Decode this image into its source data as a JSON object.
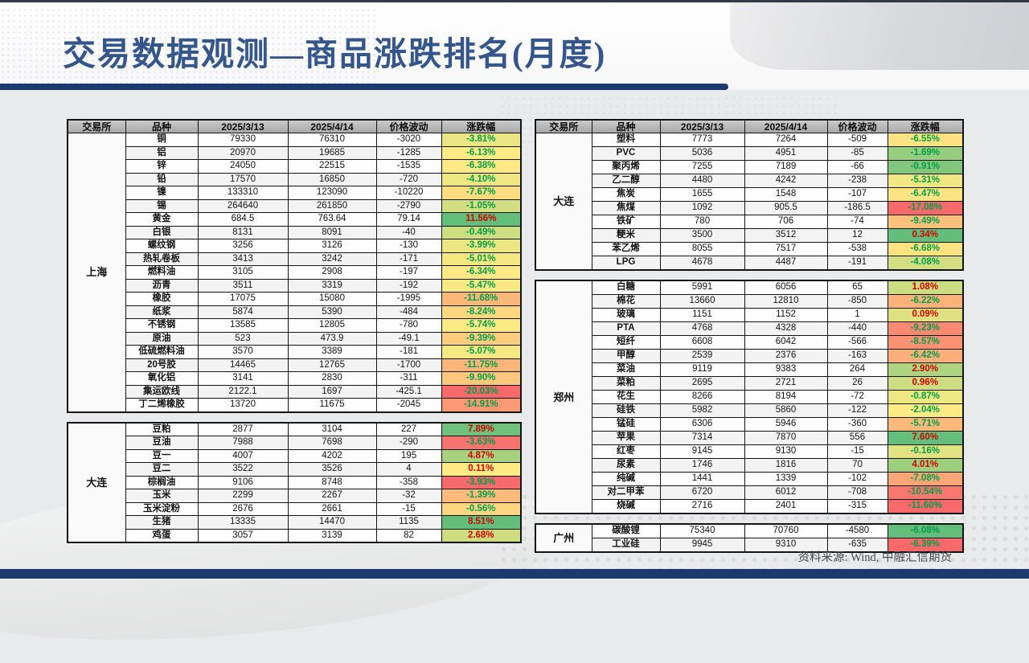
{
  "title": "交易数据观测—商品涨跌排名(月度)",
  "source_note": "资料来源: Wind, 中融汇信期货",
  "columns": [
    "交易所",
    "品种",
    "2025/3/13",
    "2025/4/14",
    "价格波动",
    "涨跌幅"
  ],
  "colors": {
    "accent": "#1C3A6E",
    "title_text": "#35568B",
    "positive_text": "#D40000",
    "negative_text": "#009E4A",
    "scale_max_green": "#63BE7B",
    "scale_mid_yellow": "#FFEB84",
    "scale_min_red": "#F8696B"
  },
  "left_table": {
    "sections": [
      {
        "exchange": "上海",
        "rows": [
          {
            "name": "铜",
            "d1": "79330",
            "d2": "76310",
            "chg": "-3020",
            "pct": "-3.81%",
            "bg": "#EBE583"
          },
          {
            "name": "铝",
            "d1": "20970",
            "d2": "19685",
            "chg": "-1285",
            "pct": "-6.13%",
            "bg": "#FFEB84"
          },
          {
            "name": "锌",
            "d1": "24050",
            "d2": "22515",
            "chg": "-1535",
            "pct": "-6.38%",
            "bg": "#FFE984"
          },
          {
            "name": "铅",
            "d1": "17570",
            "d2": "16850",
            "chg": "-720",
            "pct": "-4.10%",
            "bg": "#EDE683"
          },
          {
            "name": "镍",
            "d1": "133310",
            "d2": "123090",
            "chg": "-10220",
            "pct": "-7.67%",
            "bg": "#FEDD81"
          },
          {
            "name": "锡",
            "d1": "264640",
            "d2": "261850",
            "chg": "-2790",
            "pct": "-1.05%",
            "bg": "#D2DE81"
          },
          {
            "name": "黄金",
            "d1": "684.5",
            "d2": "763.64",
            "chg": "79.14",
            "pct": "11.56%",
            "bg": "#63BE7B"
          },
          {
            "name": "白银",
            "d1": "8131",
            "d2": "8091",
            "chg": "-40",
            "pct": "-0.49%",
            "bg": "#CDDD81"
          },
          {
            "name": "螺纹钢",
            "d1": "3256",
            "d2": "3126",
            "chg": "-130",
            "pct": "-3.99%",
            "bg": "#ECE683"
          },
          {
            "name": "热轧卷板",
            "d1": "3413",
            "d2": "3242",
            "chg": "-171",
            "pct": "-5.01%",
            "bg": "#F5E883"
          },
          {
            "name": "燃料油",
            "d1": "3105",
            "d2": "2908",
            "chg": "-197",
            "pct": "-6.34%",
            "bg": "#FFE984"
          },
          {
            "name": "沥青",
            "d1": "3511",
            "d2": "3319",
            "chg": "-192",
            "pct": "-5.47%",
            "bg": "#F9E984"
          },
          {
            "name": "橡胶",
            "d1": "17075",
            "d2": "15080",
            "chg": "-1995",
            "pct": "-11.68%",
            "bg": "#FCB77A"
          },
          {
            "name": "纸浆",
            "d1": "5874",
            "d2": "5390",
            "chg": "-484",
            "pct": "-8.24%",
            "bg": "#FED780"
          },
          {
            "name": "不锈钢",
            "d1": "13585",
            "d2": "12805",
            "chg": "-780",
            "pct": "-5.74%",
            "bg": "#FCEA84"
          },
          {
            "name": "原油",
            "d1": "523",
            "d2": "473.9",
            "chg": "-49.1",
            "pct": "-9.39%",
            "bg": "#FDCC7E"
          },
          {
            "name": "低硫燃料油",
            "d1": "3570",
            "d2": "3389",
            "chg": "-181",
            "pct": "-5.07%",
            "bg": "#F6E883"
          },
          {
            "name": "20号胶",
            "d1": "14465",
            "d2": "12765",
            "chg": "-1700",
            "pct": "-11.75%",
            "bg": "#FCB67A"
          },
          {
            "name": "氧化铝",
            "d1": "3141",
            "d2": "2830",
            "chg": "-311",
            "pct": "-9.90%",
            "bg": "#FDC87D"
          },
          {
            "name": "集运欧线",
            "d1": "2122.1",
            "d2": "1697",
            "chg": "-425.1",
            "pct": "-20.03%",
            "bg": "#F8696B"
          },
          {
            "name": "丁二烯橡胶",
            "d1": "13720",
            "d2": "11675",
            "chg": "-2045",
            "pct": "-14.91%",
            "bg": "#FB9974"
          }
        ]
      },
      {
        "exchange": "大连",
        "rows": [
          {
            "name": "豆粕",
            "d1": "2877",
            "d2": "3104",
            "chg": "227",
            "pct": "7.89%",
            "bg": "#6FC17C"
          },
          {
            "name": "豆油",
            "d1": "7988",
            "d2": "7698",
            "chg": "-290",
            "pct": "-3.63%",
            "bg": "#F8736D"
          },
          {
            "name": "豆一",
            "d1": "4007",
            "d2": "4202",
            "chg": "195",
            "pct": "4.87%",
            "bg": "#A7D17F"
          },
          {
            "name": "豆二",
            "d1": "3522",
            "d2": "3526",
            "chg": "4",
            "pct": "0.11%",
            "bg": "#FFEB84"
          },
          {
            "name": "棕榈油",
            "d1": "9106",
            "d2": "8748",
            "chg": "-358",
            "pct": "-3.93%",
            "bg": "#F8696B"
          },
          {
            "name": "玉米",
            "d1": "2299",
            "d2": "2267",
            "chg": "-32",
            "pct": "-1.39%",
            "bg": "#FCBB7B"
          },
          {
            "name": "玉米淀粉",
            "d1": "2676",
            "d2": "2661",
            "chg": "-15",
            "pct": "-0.56%",
            "bg": "#FED580"
          },
          {
            "name": "生猪",
            "d1": "13335",
            "d2": "14470",
            "chg": "1135",
            "pct": "8.51%",
            "bg": "#63BE7B"
          },
          {
            "name": "鸡蛋",
            "d1": "3057",
            "d2": "3139",
            "chg": "82",
            "pct": "2.68%",
            "bg": "#CFDD81"
          }
        ]
      }
    ]
  },
  "right_table": {
    "sections": [
      {
        "exchange": "大连",
        "rows": [
          {
            "name": "塑料",
            "d1": "7773",
            "d2": "7264",
            "chg": "-509",
            "pct": "-6.55%",
            "bg": "#FFE383"
          },
          {
            "name": "PVC",
            "d1": "5036",
            "d2": "4951",
            "chg": "-85",
            "pct": "-1.69%",
            "bg": "#96CD7E"
          },
          {
            "name": "聚丙烯",
            "d1": "7255",
            "d2": "7189",
            "chg": "-66",
            "pct": "-0.91%",
            "bg": "#82C77D"
          },
          {
            "name": "乙二醇",
            "d1": "4480",
            "d2": "4242",
            "chg": "-238",
            "pct": "-5.31%",
            "bg": "#F0E783"
          },
          {
            "name": "焦炭",
            "d1": "1655",
            "d2": "1548",
            "chg": "-107",
            "pct": "-6.47%",
            "bg": "#FFE483"
          },
          {
            "name": "焦煤",
            "d1": "1092",
            "d2": "905.5",
            "chg": "-186.5",
            "pct": "-17.08%",
            "bg": "#F8696B"
          },
          {
            "name": "铁矿",
            "d1": "780",
            "d2": "706",
            "chg": "-74",
            "pct": "-9.49%",
            "bg": "#FDC17C"
          },
          {
            "name": "粳米",
            "d1": "3500",
            "d2": "3512",
            "chg": "12",
            "pct": "0.34%",
            "bg": "#63BE7B"
          },
          {
            "name": "苯乙烯",
            "d1": "8055",
            "d2": "7517",
            "chg": "-538",
            "pct": "-6.68%",
            "bg": "#FFE282"
          },
          {
            "name": "LPG",
            "d1": "4678",
            "d2": "4487",
            "chg": "-191",
            "pct": "-4.08%",
            "bg": "#D2DE81"
          }
        ]
      },
      {
        "exchange": "郑州",
        "rows": [
          {
            "name": "白糖",
            "d1": "5991",
            "d2": "6056",
            "chg": "65",
            "pct": "1.08%",
            "bg": "#CCDC81"
          },
          {
            "name": "棉花",
            "d1": "13660",
            "d2": "12810",
            "chg": "-850",
            "pct": "-6.22%",
            "bg": "#FCB279"
          },
          {
            "name": "玻璃",
            "d1": "1151",
            "d2": "1152",
            "chg": "1",
            "pct": "0.09%",
            "bg": "#DDE182"
          },
          {
            "name": "PTA",
            "d1": "4768",
            "d2": "4328",
            "chg": "-440",
            "pct": "-9.23%",
            "bg": "#FA8971"
          },
          {
            "name": "短纤",
            "d1": "6608",
            "d2": "6042",
            "chg": "-566",
            "pct": "-8.57%",
            "bg": "#FA9273"
          },
          {
            "name": "甲醇",
            "d1": "2539",
            "d2": "2376",
            "chg": "-163",
            "pct": "-6.42%",
            "bg": "#FCAF79"
          },
          {
            "name": "菜油",
            "d1": "9119",
            "d2": "9383",
            "chg": "264",
            "pct": "2.90%",
            "bg": "#AFD47F"
          },
          {
            "name": "菜粕",
            "d1": "2695",
            "d2": "2721",
            "chg": "26",
            "pct": "0.96%",
            "bg": "#CEDD81"
          },
          {
            "name": "花生",
            "d1": "8266",
            "d2": "8194",
            "chg": "-72",
            "pct": "-0.87%",
            "bg": "#ECE683"
          },
          {
            "name": "硅铁",
            "d1": "5982",
            "d2": "5860",
            "chg": "-122",
            "pct": "-2.04%",
            "bg": "#FFEB84"
          },
          {
            "name": "锰硅",
            "d1": "6306",
            "d2": "5946",
            "chg": "-360",
            "pct": "-5.71%",
            "bg": "#FCB97A"
          },
          {
            "name": "苹果",
            "d1": "7314",
            "d2": "7870",
            "chg": "556",
            "pct": "7.60%",
            "bg": "#63BE7B"
          },
          {
            "name": "红枣",
            "d1": "9145",
            "d2": "9130",
            "chg": "-15",
            "pct": "-0.16%",
            "bg": "#E1E282"
          },
          {
            "name": "尿素",
            "d1": "1746",
            "d2": "1816",
            "chg": "70",
            "pct": "4.01%",
            "bg": "#9DCF7E"
          },
          {
            "name": "纯碱",
            "d1": "1441",
            "d2": "1339",
            "chg": "-102",
            "pct": "-7.08%",
            "bg": "#FBA677"
          },
          {
            "name": "对二甲苯",
            "d1": "6720",
            "d2": "6012",
            "chg": "-708",
            "pct": "-10.54%",
            "bg": "#F9776E"
          },
          {
            "name": "烧碱",
            "d1": "2716",
            "d2": "2401",
            "chg": "-315",
            "pct": "-11.60%",
            "bg": "#F8696B"
          }
        ]
      },
      {
        "exchange": "广州",
        "rows": [
          {
            "name": "碳酸锂",
            "d1": "75340",
            "d2": "70760",
            "chg": "-4580",
            "pct": "-6.08%",
            "bg": "#63BE7B"
          },
          {
            "name": "工业硅",
            "d1": "9945",
            "d2": "9310",
            "chg": "-635",
            "pct": "-6.39%",
            "bg": "#F8696B"
          }
        ]
      }
    ]
  }
}
